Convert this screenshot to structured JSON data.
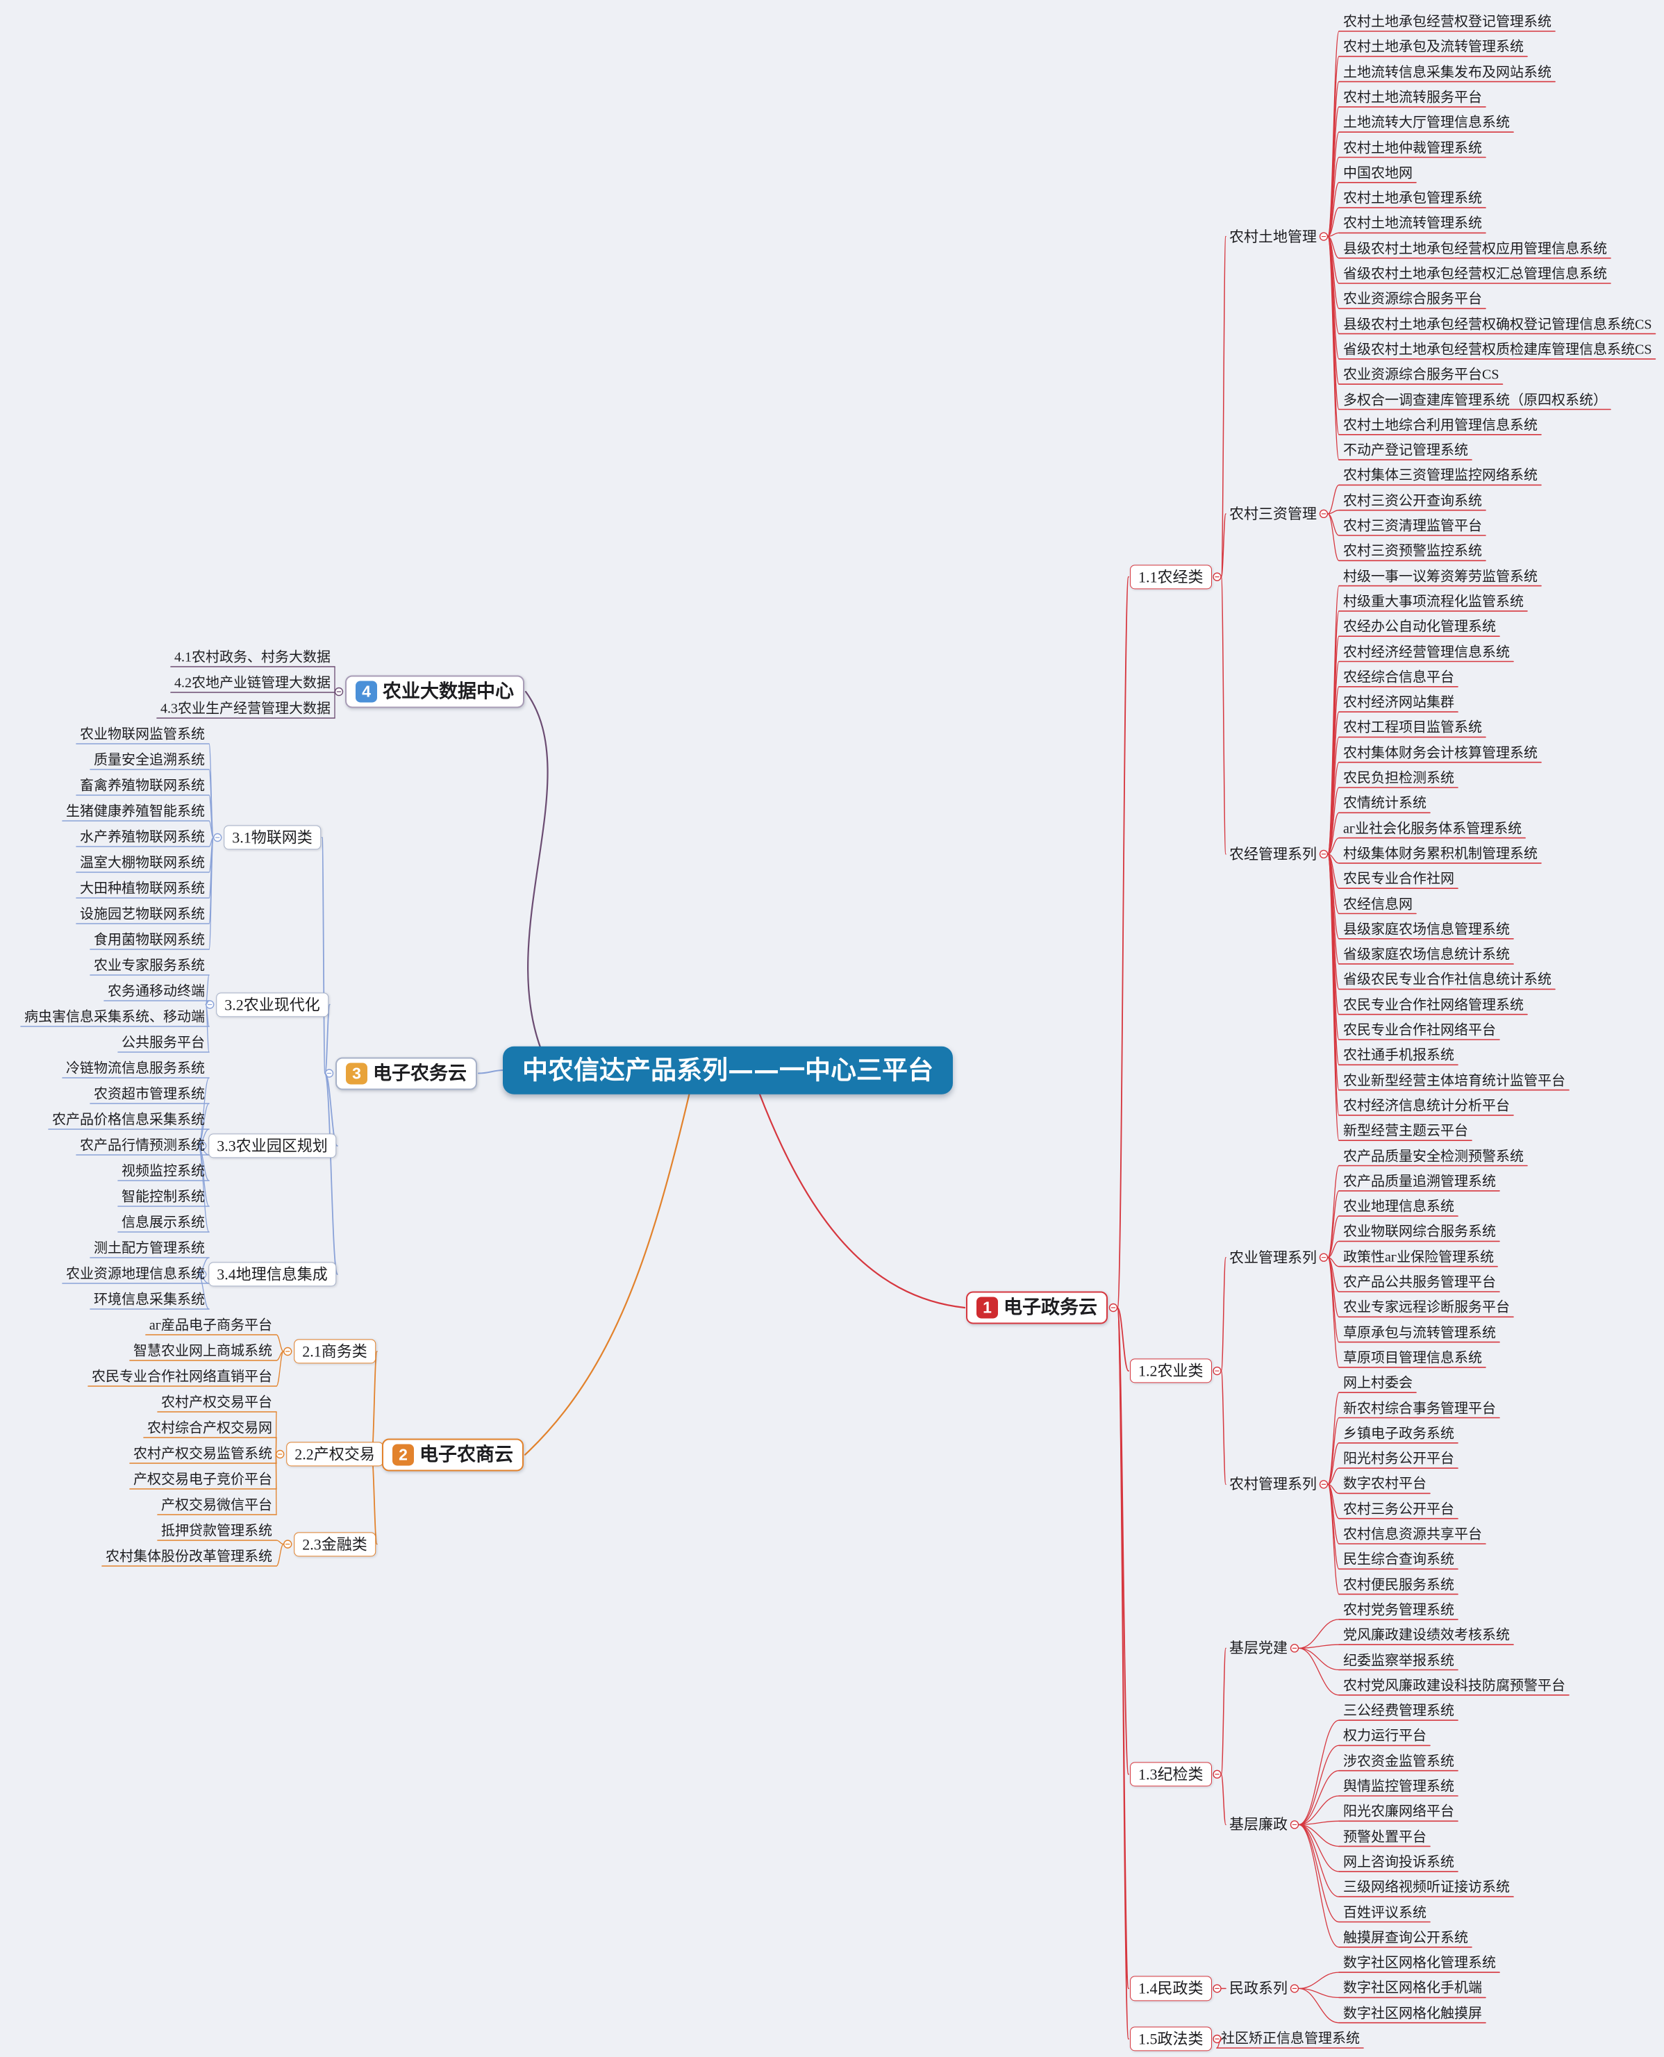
{
  "center": {
    "title": "中农信达产品系列——一中心三平台"
  },
  "colors": {
    "background": "#eef0f5",
    "center_bg": "#1878ad",
    "center_text": "#ffffff",
    "text": "#1d1d20",
    "branch1": "#d6373f",
    "branch1_badge": "#cf2b2f",
    "branch2": "#e2822c",
    "branch2_badge": "#e2822c",
    "branch3_line": "#8aa2d8",
    "branch3_border": "#a7b1c8",
    "branch3_badge": "#e8a33a",
    "branch4_line": "#6b4c72",
    "branch4_border": "#a89cb6",
    "branch4_badge": "#4a90d8"
  },
  "branches": [
    {
      "badge": "1",
      "label": "电子政务云",
      "side": "right",
      "categories": [
        {
          "label": "1.1农经类",
          "series": [
            {
              "label": "农村土地管理",
              "items": [
                "农村土地承包经营权登记管理系统",
                "农村土地承包及流转管理系统",
                "土地流转信息采集发布及网站系统",
                "农村土地流转服务平台",
                "土地流转大厅管理信息系统",
                "农村土地仲裁管理系统",
                "中国农地网",
                "农村土地承包管理系统",
                "农村土地流转管理系统",
                "县级农村土地承包经营权应用管理信息系统",
                "省级农村土地承包经营权汇总管理信息系统",
                "农业资源综合服务平台",
                "县级农村土地承包经营权确权登记管理信息系统CS",
                "省级农村土地承包经营权质检建库管理信息系统CS",
                "农业资源综合服务平台CS",
                "多权合一调查建库管理系统（原四权系统）",
                "农村土地综合利用管理信息系统",
                "不动产登记管理系统"
              ]
            },
            {
              "label": "农村三资管理",
              "items": [
                "农村集体三资管理监控网络系统",
                "农村三资公开查询系统",
                "农村三资清理监管平台",
                "农村三资预警监控系统"
              ]
            },
            {
              "label": "农经管理系列",
              "items": [
                "村级一事一议筹资筹劳监管系统",
                "村级重大事项流程化监管系统",
                "农经办公自动化管理系统",
                "农村经济经营管理信息系统",
                "农经综合信息平台",
                "农村经济网站集群",
                "农村工程项目监管系统",
                "农村集体财务会计核算管理系统",
                "农民负担检测系统",
                "农情统计系统",
                "аг业社会化服务体系管理系统",
                "村级集体财务累积机制管理系统",
                "农民专业合作社网",
                "农经信息网",
                "县级家庭农场信息管理系统",
                "省级家庭农场信息统计系统",
                "省级农民专业合作社信息统计系统",
                "农民专业合作社网络管理系统",
                "农民专业合作社网络平台",
                "农社通手机报系统",
                "农业新型经营主体培育统计监管平台",
                "农村经济信息统计分析平台",
                "新型经营主题云平台"
              ]
            }
          ]
        },
        {
          "label": "1.2农业类",
          "series": [
            {
              "label": "农业管理系列",
              "items": [
                "农产品质量安全检测预警系统",
                "农产品质量追溯管理系统",
                "农业地理信息系统",
                "农业物联网综合服务系统",
                "政策性аг业保险管理系统",
                "农产品公共服务管理平台",
                "农业专家远程诊断服务平台",
                "草原承包与流转管理系统",
                "草原项目管理信息系统"
              ]
            },
            {
              "label": "农村管理系列",
              "items": [
                "网上村委会",
                "新农村综合事务管理平台",
                "乡镇电子政务系统",
                "阳光村务公开平台",
                "数字农村平台",
                "农村三务公开平台",
                "农村信息资源共享平台",
                "民生综合查询系统",
                "农村便民服务系统"
              ]
            }
          ]
        },
        {
          "label": "1.3纪检类",
          "series": [
            {
              "label": "基层党建",
              "items": [
                "农村党务管理系统",
                "党风廉政建设绩效考核系统",
                "纪委监察举报系统",
                "农村党风廉政建设科技防腐预警平台"
              ]
            },
            {
              "label": "基层廉政",
              "items": [
                "三公经费管理系统",
                "权力运行平台",
                "涉农资金监管系统",
                "舆情监控管理系统",
                "阳光农廉网络平台",
                "预警处置平台",
                "网上咨询投诉系统",
                "三级网络视频听证接访系统",
                "百姓评议系统",
                "触摸屏查询公开系统"
              ]
            }
          ]
        },
        {
          "label": "1.4民政类",
          "series": [
            {
              "label": "民政系列",
              "items": [
                "数字社区网格化管理系统",
                "数字社区网格化手机端",
                "数字社区网格化触摸屏"
              ]
            }
          ]
        },
        {
          "label": "1.5政法类",
          "series": [
            {
              "label": "",
              "items": [
                "社区矫正信息管理系统"
              ]
            }
          ]
        }
      ]
    },
    {
      "badge": "2",
      "label": "电子农商云",
      "side": "left",
      "categories": [
        {
          "label": "2.1商务类",
          "items": [
            "аг産品电子商务平台",
            "智慧农业网上商城系统",
            "农民专业合作社网络直销平台"
          ]
        },
        {
          "label": "2.2产权交易",
          "items": [
            "农村产权交易平台",
            "农村综合产权交易网",
            "农村产权交易监管系统",
            "产权交易电子竞价平台",
            "产权交易微信平台"
          ]
        },
        {
          "label": "2.3金融类",
          "items": [
            "抵押贷款管理系统",
            "农村集体股份改革管理系统"
          ]
        }
      ]
    },
    {
      "badge": "3",
      "label": "电子农务云",
      "side": "left",
      "categories": [
        {
          "label": "3.1物联网类",
          "items": [
            "农业物联网监管系统",
            "质量安全追溯系统",
            "畜禽养殖物联网系统",
            "生猪健康养殖智能系统",
            "水产养殖物联网系统",
            "温室大棚物联网系统",
            "大田种植物联网系统",
            "设施园艺物联网系统",
            "食用菌物联网系统"
          ]
        },
        {
          "label": "3.2农业现代化",
          "items": [
            "农业专家服务系统",
            "农务通移动终端",
            "病虫害信息采集系统、移动端",
            "公共服务平台"
          ]
        },
        {
          "label": "3.3农业园区规划",
          "items": [
            "冷链物流信息服务系统",
            "农资超市管理系统",
            "农产品价格信息采集系统",
            "农产品行情预测系统",
            "视频监控系统",
            "智能控制系统",
            "信息展示系统"
          ]
        },
        {
          "label": "3.4地理信息集成",
          "items": [
            "测土配方管理系统",
            "农业资源地理信息系统",
            "环境信息采集系统"
          ]
        }
      ]
    },
    {
      "badge": "4",
      "label": "农业大数据中心",
      "side": "left",
      "items": [
        "4.1农村政务、村务大数据",
        "4.2农地产业链管理大数据",
        "4.3农业生产经营管理大数据"
      ]
    }
  ]
}
